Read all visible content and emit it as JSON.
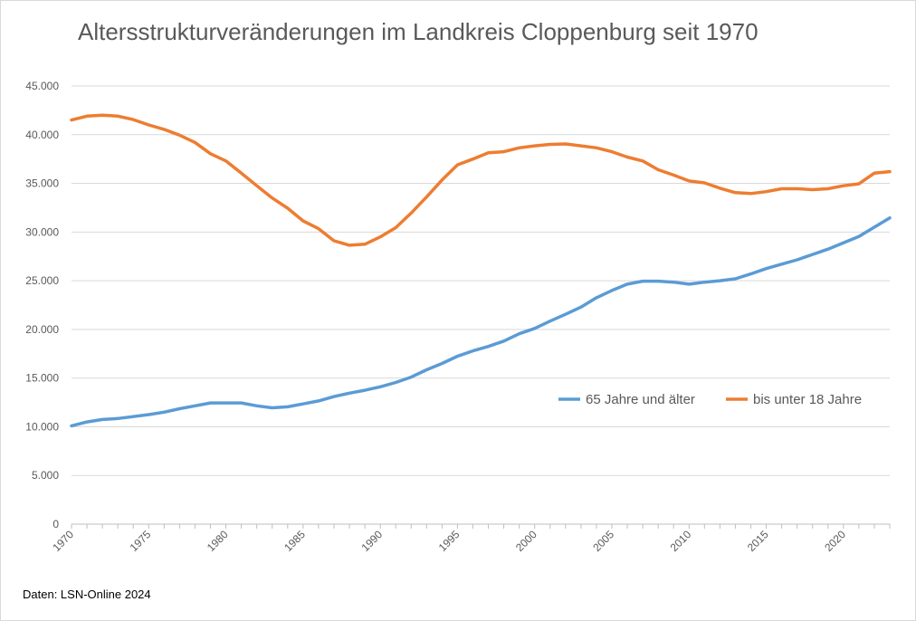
{
  "chart_data": {
    "type": "line",
    "title": "Altersstrukturveränderungen im Landkreis Cloppenburg seit 1970",
    "source": "Daten: LSN-Online 2024",
    "xlabel": "",
    "ylabel": "",
    "xlim": [
      1970,
      2023
    ],
    "ylim": [
      0,
      45000
    ],
    "y_ticks": [
      0,
      5000,
      10000,
      15000,
      20000,
      25000,
      30000,
      35000,
      40000,
      45000
    ],
    "y_tick_labels": [
      "0",
      "5.000",
      "10.000",
      "15.000",
      "20.000",
      "25.000",
      "30.000",
      "35.000",
      "40.000",
      "45.000"
    ],
    "x_ticks": [
      1970,
      1975,
      1980,
      1985,
      1990,
      1995,
      2000,
      2005,
      2010,
      2015,
      2020
    ],
    "x_tick_labels": [
      "1970",
      "1975",
      "1980",
      "1985",
      "1990",
      "1995",
      "2000",
      "2005",
      "2010",
      "2015",
      "2020"
    ],
    "grid": "horizontal",
    "legend_position": "right",
    "x": [
      1970,
      1971,
      1972,
      1973,
      1974,
      1975,
      1976,
      1977,
      1978,
      1979,
      1980,
      1981,
      1982,
      1983,
      1984,
      1985,
      1986,
      1987,
      1988,
      1989,
      1990,
      1991,
      1992,
      1993,
      1994,
      1995,
      1996,
      1997,
      1998,
      1999,
      2000,
      2001,
      2002,
      2003,
      2004,
      2005,
      2006,
      2007,
      2008,
      2009,
      2010,
      2011,
      2012,
      2013,
      2014,
      2015,
      2016,
      2017,
      2018,
      2019,
      2020,
      2021,
      2022,
      2023
    ],
    "series": [
      {
        "name": "65 Jahre und älter",
        "color": "#5b9bd5",
        "values": [
          10100,
          10500,
          10750,
          10850,
          11050,
          11250,
          11500,
          11850,
          12150,
          12450,
          12450,
          12450,
          12150,
          11950,
          12050,
          12350,
          12650,
          13100,
          13450,
          13750,
          14100,
          14550,
          15100,
          15850,
          16500,
          17250,
          17800,
          18250,
          18800,
          19550,
          20100,
          20850,
          21550,
          22300,
          23250,
          24000,
          24650,
          24950,
          24950,
          24850,
          24650,
          24850,
          25000,
          25200,
          25700,
          26250,
          26700,
          27150,
          27700,
          28250,
          28900,
          29550,
          30500,
          31450
        ]
      },
      {
        "name": "bis unter 18 Jahre",
        "color": "#ed7d31",
        "values": [
          41500,
          41900,
          42000,
          41900,
          41550,
          41000,
          40550,
          39950,
          39200,
          38050,
          37300,
          36050,
          34750,
          33500,
          32450,
          31150,
          30350,
          29100,
          28650,
          28750,
          29500,
          30450,
          31950,
          33600,
          35350,
          36900,
          37500,
          38150,
          38250,
          38650,
          38850,
          39000,
          39050,
          38850,
          38650,
          38250,
          37700,
          37300,
          36400,
          35850,
          35250,
          35050,
          34500,
          34050,
          33950,
          34150,
          34450,
          34450,
          34350,
          34450,
          34750,
          34950,
          36050,
          36200
        ]
      }
    ]
  }
}
